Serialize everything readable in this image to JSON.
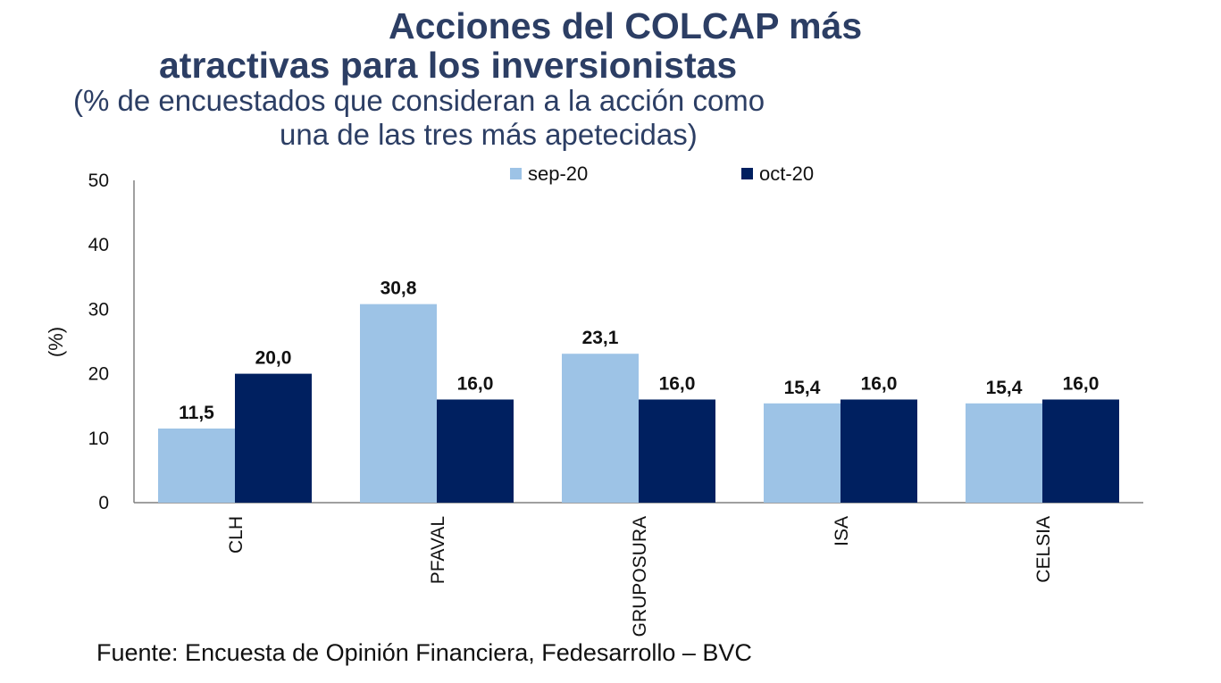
{
  "title_line1": "Acciones del COLCAP más",
  "title_line2": "atractivas para los inversionistas",
  "subtitle_line1": "(% de encuestados que consideran a la acción como",
  "subtitle_line2": "una de las tres más apetecidas)",
  "footer": "Fuente: Encuesta de Opinión Financiera, Fedesarrollo – BVC",
  "colors": {
    "title": "#2c3e64",
    "sep": "#9dc3e6",
    "oct": "#002060"
  },
  "chart_data": {
    "type": "bar",
    "title": "Acciones del COLCAP más atractivas para los inversionistas",
    "xlabel": "",
    "ylabel": "(%)",
    "ylim": [
      0,
      50
    ],
    "yticks": [
      0,
      10,
      20,
      30,
      40,
      50
    ],
    "categories": [
      "CLH",
      "PFAVAL",
      "GRUPOSURA",
      "ISA",
      "CELSIA"
    ],
    "series": [
      {
        "name": "sep-20",
        "values": [
          11.5,
          30.8,
          23.1,
          15.4,
          15.4
        ],
        "labels": [
          "11,5",
          "30,8",
          "23,1",
          "15,4",
          "15,4"
        ]
      },
      {
        "name": "oct-20",
        "values": [
          20.0,
          16.0,
          16.0,
          16.0,
          16.0
        ],
        "labels": [
          "20,0",
          "16,0",
          "16,0",
          "16,0",
          "16,0"
        ]
      }
    ],
    "legend": "top-center",
    "grid": false
  }
}
